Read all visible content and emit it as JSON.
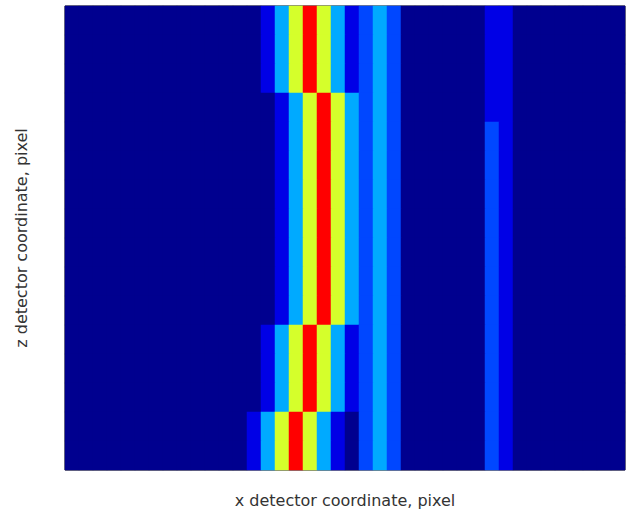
{
  "chart_data": {
    "type": "heatmap",
    "x_label": "x detector coordinate, pixel",
    "y_label": "z detector coordinate, pixel",
    "tick_labels": false,
    "color_range": [
      1,
      10
    ],
    "cells": [
      [
        0,
        0,
        1,
        0,
        0,
        0,
        0,
        1,
        0,
        0,
        0,
        1,
        0,
        0,
        2,
        4,
        7,
        10,
        7,
        4,
        2,
        3,
        4,
        3,
        1,
        0,
        1,
        0,
        0,
        0,
        2,
        2,
        0,
        1,
        0,
        0,
        0,
        1,
        0,
        0
      ],
      [
        1,
        0,
        0,
        0,
        0,
        1,
        0,
        0,
        0,
        1,
        0,
        0,
        0,
        1,
        2,
        4,
        7,
        10,
        7,
        4,
        2,
        3,
        4,
        3,
        1,
        0,
        0,
        0,
        1,
        0,
        2,
        2,
        0,
        0,
        0,
        1,
        0,
        0,
        0,
        0
      ],
      [
        0,
        0,
        0,
        1,
        0,
        0,
        0,
        0,
        1,
        0,
        0,
        0,
        1,
        0,
        2,
        4,
        7,
        10,
        7,
        4,
        2,
        3,
        4,
        3,
        1,
        1,
        0,
        0,
        0,
        0,
        2,
        2,
        1,
        0,
        0,
        0,
        0,
        0,
        1,
        0
      ],
      [
        0,
        1,
        0,
        0,
        0,
        0,
        1,
        0,
        0,
        0,
        1,
        0,
        0,
        0,
        1,
        2,
        4,
        7,
        10,
        7,
        4,
        3,
        4,
        3,
        1,
        0,
        0,
        1,
        0,
        0,
        2,
        2,
        0,
        0,
        1,
        0,
        0,
        0,
        0,
        1
      ],
      [
        0,
        0,
        0,
        0,
        1,
        0,
        0,
        0,
        0,
        1,
        0,
        0,
        0,
        1,
        0,
        2,
        4,
        7,
        10,
        7,
        4,
        3,
        4,
        3,
        1,
        0,
        1,
        0,
        0,
        1,
        3,
        2,
        0,
        0,
        0,
        0,
        1,
        0,
        0,
        0
      ],
      [
        0,
        0,
        1,
        0,
        0,
        0,
        0,
        1,
        0,
        0,
        0,
        1,
        0,
        0,
        0,
        2,
        4,
        7,
        10,
        7,
        4,
        3,
        4,
        3,
        1,
        1,
        0,
        0,
        0,
        0,
        3,
        2,
        0,
        1,
        0,
        0,
        0,
        0,
        1,
        0
      ],
      [
        1,
        0,
        0,
        0,
        0,
        1,
        0,
        0,
        0,
        0,
        1,
        0,
        0,
        0,
        0,
        2,
        4,
        7,
        10,
        7,
        4,
        3,
        4,
        3,
        1,
        0,
        0,
        0,
        1,
        0,
        3,
        2,
        0,
        0,
        0,
        1,
        0,
        0,
        0,
        0
      ],
      [
        0,
        0,
        0,
        1,
        0,
        0,
        0,
        0,
        1,
        0,
        0,
        0,
        1,
        0,
        0,
        2,
        4,
        7,
        10,
        7,
        4,
        3,
        4,
        3,
        1,
        0,
        1,
        0,
        0,
        0,
        3,
        2,
        1,
        0,
        0,
        0,
        0,
        1,
        0,
        0
      ],
      [
        0,
        1,
        0,
        0,
        0,
        0,
        1,
        0,
        0,
        0,
        0,
        1,
        0,
        0,
        1,
        2,
        4,
        7,
        10,
        7,
        4,
        3,
        4,
        3,
        1,
        0,
        0,
        1,
        0,
        0,
        3,
        2,
        0,
        0,
        1,
        0,
        0,
        0,
        0,
        1
      ],
      [
        0,
        0,
        0,
        0,
        1,
        0,
        0,
        0,
        0,
        1,
        0,
        0,
        0,
        1,
        0,
        2,
        4,
        7,
        10,
        7,
        4,
        3,
        4,
        3,
        1,
        1,
        0,
        0,
        0,
        1,
        3,
        2,
        0,
        0,
        0,
        0,
        1,
        0,
        0,
        0
      ],
      [
        0,
        0,
        1,
        0,
        0,
        0,
        0,
        1,
        0,
        0,
        1,
        0,
        0,
        0,
        0,
        2,
        4,
        7,
        10,
        7,
        4,
        3,
        4,
        3,
        1,
        0,
        0,
        0,
        1,
        0,
        3,
        2,
        0,
        1,
        0,
        0,
        0,
        0,
        1,
        0
      ],
      [
        1,
        0,
        0,
        0,
        0,
        1,
        0,
        0,
        0,
        1,
        0,
        0,
        1,
        0,
        2,
        4,
        7,
        10,
        7,
        4,
        2,
        3,
        4,
        3,
        1,
        0,
        1,
        0,
        0,
        0,
        3,
        2,
        0,
        0,
        0,
        1,
        0,
        0,
        0,
        0
      ],
      [
        0,
        0,
        0,
        1,
        0,
        0,
        0,
        0,
        1,
        0,
        0,
        1,
        0,
        0,
        2,
        4,
        7,
        10,
        7,
        4,
        2,
        3,
        4,
        3,
        1,
        0,
        0,
        1,
        0,
        0,
        3,
        2,
        1,
        0,
        0,
        0,
        0,
        1,
        0,
        0
      ],
      [
        0,
        1,
        0,
        0,
        0,
        0,
        1,
        0,
        0,
        0,
        1,
        0,
        0,
        0,
        2,
        4,
        7,
        10,
        7,
        4,
        2,
        3,
        4,
        3,
        1,
        1,
        0,
        0,
        0,
        0,
        3,
        2,
        0,
        0,
        1,
        0,
        0,
        0,
        0,
        1
      ],
      [
        0,
        0,
        0,
        0,
        1,
        0,
        0,
        0,
        0,
        1,
        0,
        0,
        1,
        2,
        4,
        7,
        10,
        7,
        4,
        2,
        1,
        3,
        4,
        3,
        1,
        0,
        0,
        0,
        1,
        0,
        3,
        2,
        0,
        1,
        0,
        0,
        1,
        0,
        0,
        0
      ],
      [
        0,
        0,
        1,
        0,
        0,
        0,
        0,
        1,
        0,
        0,
        0,
        1,
        0,
        2,
        4,
        7,
        10,
        7,
        4,
        2,
        1,
        3,
        4,
        3,
        1,
        0,
        1,
        0,
        0,
        0,
        3,
        2,
        0,
        0,
        0,
        1,
        0,
        0,
        1,
        0
      ]
    ]
  }
}
